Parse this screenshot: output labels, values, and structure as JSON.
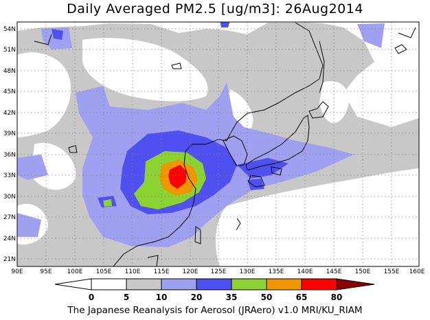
{
  "title": "Daily Averaged PM2.5 [ug/m3]: 26Aug2014",
  "credit": "The Japanese Reanalysis for Aerosol (JRAero) v1.0 MRI/KU_RIAM",
  "map": {
    "lon_range": [
      90,
      160
    ],
    "lat_range": [
      20,
      55
    ],
    "lon_ticks": [
      "90E",
      "95E",
      "100E",
      "105E",
      "110E",
      "115E",
      "120E",
      "125E",
      "130E",
      "135E",
      "140E",
      "145E",
      "150E",
      "155E",
      "160E"
    ],
    "lat_ticks": [
      "54N",
      "51N",
      "48N",
      "45N",
      "42N",
      "39N",
      "36N",
      "33N",
      "30N",
      "27N",
      "24N",
      "21N"
    ],
    "grid": true
  },
  "colorbar": {
    "labels": [
      "0",
      "5",
      "10",
      "20",
      "35",
      "50",
      "65",
      "80"
    ],
    "colors": [
      "#ffffff",
      "#c8c8c8",
      "#a0a0f0",
      "#5050f0",
      "#8cd232",
      "#f09600",
      "#ff0000",
      "#8b0000"
    ]
  }
}
